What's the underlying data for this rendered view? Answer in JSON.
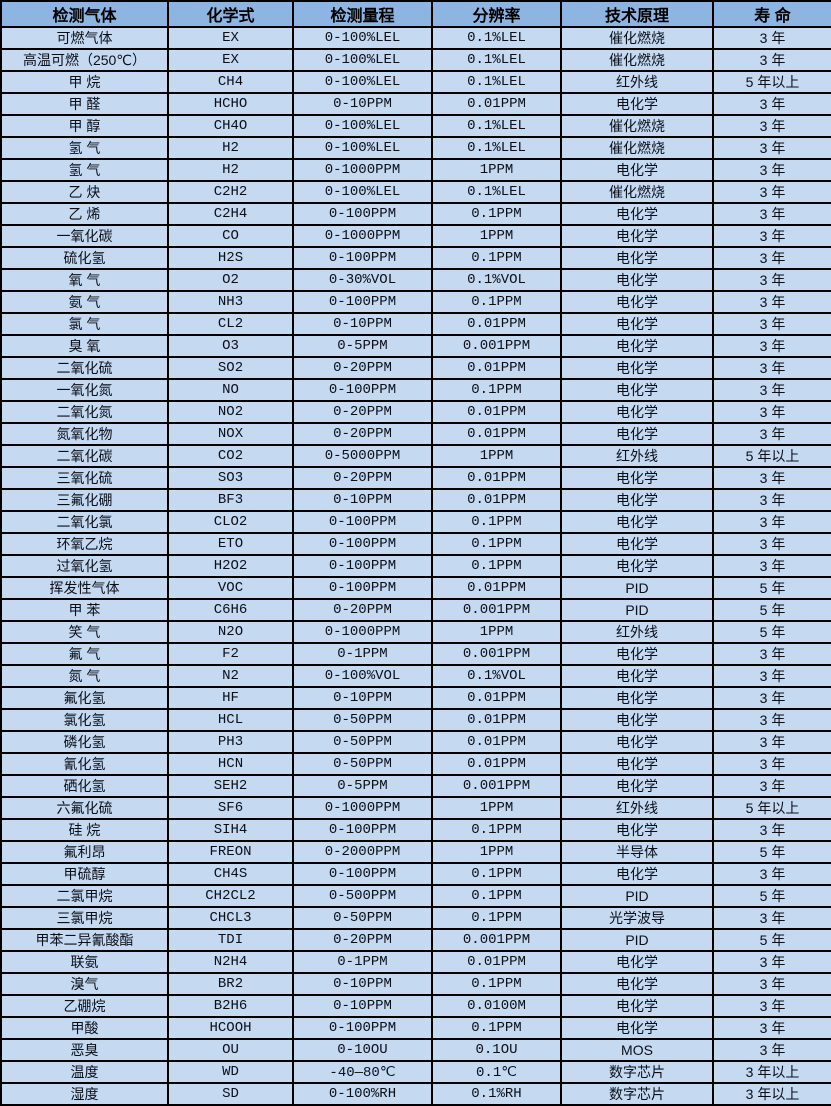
{
  "colors": {
    "header_bg": "#8EB4E2",
    "row_bg": "#C5D9F1",
    "border": "#000000",
    "text": "#0A0F1A"
  },
  "table": {
    "headers": [
      "检测气体",
      "化学式",
      "检测量程",
      "分辨率",
      "技术原理",
      "寿 命"
    ],
    "rows": [
      [
        "可燃气体",
        "EX",
        "0-100%LEL",
        "0.1%LEL",
        "催化燃烧",
        "3 年"
      ],
      [
        "高温可燃（250℃）",
        "EX",
        "0-100%LEL",
        "0.1%LEL",
        "催化燃烧",
        "3 年"
      ],
      [
        "甲 烷",
        "CH4",
        "0-100%LEL",
        "0.1%LEL",
        "红外线",
        "5 年以上"
      ],
      [
        "甲 醛",
        "HCHO",
        "0-10PPM",
        "0.01PPM",
        "电化学",
        "3 年"
      ],
      [
        "甲 醇",
        "CH4O",
        "0-100%LEL",
        "0.1%LEL",
        "催化燃烧",
        "3 年"
      ],
      [
        "氢 气",
        "H2",
        "0-100%LEL",
        "0.1%LEL",
        "催化燃烧",
        "3 年"
      ],
      [
        "氢 气",
        "H2",
        "0-1000PPM",
        "1PPM",
        "电化学",
        "3 年"
      ],
      [
        "乙 炔",
        "C2H2",
        "0-100%LEL",
        "0.1%LEL",
        "催化燃烧",
        "3 年"
      ],
      [
        "乙 烯",
        "C2H4",
        "0-100PPM",
        "0.1PPM",
        "电化学",
        "3 年"
      ],
      [
        "一氧化碳",
        "CO",
        "0-1000PPM",
        "1PPM",
        "电化学",
        "3 年"
      ],
      [
        "硫化氢",
        "H2S",
        "0-100PPM",
        "0.1PPM",
        "电化学",
        "3 年"
      ],
      [
        "氧 气",
        "O2",
        "0-30%VOL",
        "0.1%VOL",
        "电化学",
        "3 年"
      ],
      [
        "氨 气",
        "NH3",
        "0-100PPM",
        "0.1PPM",
        "电化学",
        "3 年"
      ],
      [
        "氯 气",
        "CL2",
        "0-10PPM",
        "0.01PPM",
        "电化学",
        "3 年"
      ],
      [
        "臭 氧",
        "O3",
        "0-5PPM",
        "0.001PPM",
        "电化学",
        "3 年"
      ],
      [
        "二氧化硫",
        "SO2",
        "0-20PPM",
        "0.01PPM",
        "电化学",
        "3 年"
      ],
      [
        "一氧化氮",
        "NO",
        "0-100PPM",
        "0.1PPM",
        "电化学",
        "3 年"
      ],
      [
        "二氧化氮",
        "NO2",
        "0-20PPM",
        "0.01PPM",
        "电化学",
        "3 年"
      ],
      [
        "氮氧化物",
        "NOX",
        "0-20PPM",
        "0.01PPM",
        "电化学",
        "3 年"
      ],
      [
        "二氧化碳",
        "CO2",
        "0-5000PPM",
        "1PPM",
        "红外线",
        "5 年以上"
      ],
      [
        "三氧化硫",
        "SO3",
        "0-20PPM",
        "0.01PPM",
        "电化学",
        "3 年"
      ],
      [
        "三氟化硼",
        "BF3",
        "0-10PPM",
        "0.01PPM",
        "电化学",
        "3 年"
      ],
      [
        "二氧化氯",
        "CLO2",
        "0-100PPM",
        "0.1PPM",
        "电化学",
        "3 年"
      ],
      [
        "环氧乙烷",
        "ETO",
        "0-100PPM",
        "0.1PPM",
        "电化学",
        "3 年"
      ],
      [
        "过氧化氢",
        "H2O2",
        "0-100PPM",
        "0.1PPM",
        "电化学",
        "3 年"
      ],
      [
        "挥发性气体",
        "VOC",
        "0-100PPM",
        "0.01PPM",
        "PID",
        "5 年"
      ],
      [
        "甲 苯",
        "C6H6",
        "0-20PPM",
        "0.001PPM",
        "PID",
        "5 年"
      ],
      [
        "笑 气",
        "N2O",
        "0-1000PPM",
        "1PPM",
        "红外线",
        "5 年"
      ],
      [
        "氟 气",
        "F2",
        "0-1PPM",
        "0.001PPM",
        "电化学",
        "3 年"
      ],
      [
        "氮 气",
        "N2",
        "0-100%VOL",
        "0.1%VOL",
        "电化学",
        "3 年"
      ],
      [
        "氟化氢",
        "HF",
        "0-10PPM",
        "0.01PPM",
        "电化学",
        "3 年"
      ],
      [
        "氯化氢",
        "HCL",
        "0-50PPM",
        "0.01PPM",
        "电化学",
        "3 年"
      ],
      [
        "磷化氢",
        "PH3",
        "0-50PPM",
        "0.01PPM",
        "电化学",
        "3 年"
      ],
      [
        "氰化氢",
        "HCN",
        "0-50PPM",
        "0.01PPM",
        "电化学",
        "3 年"
      ],
      [
        "硒化氢",
        "SEH2",
        "0-5PPM",
        "0.001PPM",
        "电化学",
        "3 年"
      ],
      [
        "六氟化硫",
        "SF6",
        "0-1000PPM",
        "1PPM",
        "红外线",
        "5 年以上"
      ],
      [
        "硅 烷",
        "SIH4",
        "0-100PPM",
        "0.1PPM",
        "电化学",
        "3 年"
      ],
      [
        "氟利昂",
        "FREON",
        "0-2000PPM",
        "1PPM",
        "半导体",
        "5 年"
      ],
      [
        "甲硫醇",
        "CH4S",
        "0-100PPM",
        "0.1PPM",
        "电化学",
        "3 年"
      ],
      [
        "二氯甲烷",
        "CH2CL2",
        "0-500PPM",
        "0.1PPM",
        "PID",
        "5 年"
      ],
      [
        "三氯甲烷",
        "CHCL3",
        "0-50PPM",
        "0.1PPM",
        "光学波导",
        "3 年"
      ],
      [
        "甲苯二异氰酸酯",
        "TDI",
        "0-20PPM",
        "0.001PPM",
        "PID",
        "5 年"
      ],
      [
        "联氨",
        "N2H4",
        "0-1PPM",
        "0.01PPM",
        "电化学",
        "3 年"
      ],
      [
        "溴气",
        "BR2",
        "0-10PPM",
        "0.1PPM",
        "电化学",
        "3 年"
      ],
      [
        "乙硼烷",
        "B2H6",
        "0-10PPM",
        "0.0100M",
        "电化学",
        "3 年"
      ],
      [
        "甲酸",
        "HCOOH",
        "0-100PPM",
        "0.1PPM",
        "电化学",
        "3 年"
      ],
      [
        "恶臭",
        "OU",
        "0-10OU",
        "0.1OU",
        "MOS",
        "3 年"
      ],
      [
        "温度",
        "WD",
        "-40—80℃",
        "0.1℃",
        "数字芯片",
        "3 年以上"
      ],
      [
        "湿度",
        "SD",
        "0-100%RH",
        "0.1%RH",
        "数字芯片",
        "3 年以上"
      ]
    ]
  }
}
